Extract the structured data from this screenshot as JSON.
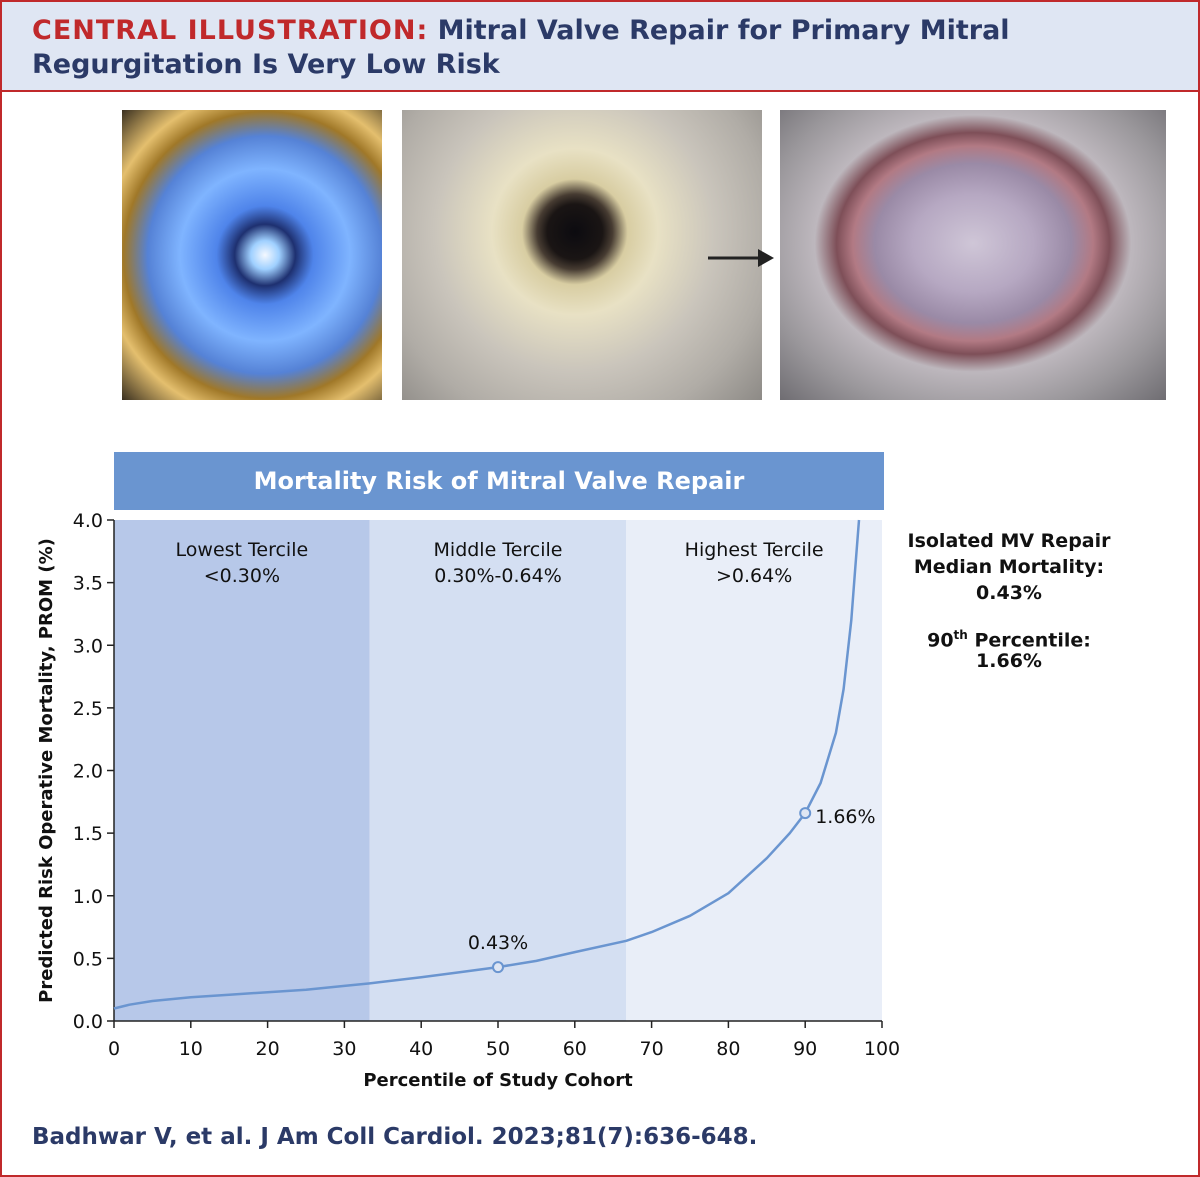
{
  "header": {
    "label": "CENTRAL ILLUSTRATION:",
    "title": "Mitral Valve Repair for Primary Mitral Regurgitation Is Very Low Risk"
  },
  "colors": {
    "accent_red": "#c0292b",
    "navy": "#2b3a67",
    "header_bg": "#dfe6f3",
    "banner_bg": "#6a95d0",
    "line": "#6a95d0",
    "band_lowest": "#b7c8e9",
    "band_middle": "#d4dff2",
    "band_highest": "#e9eef8"
  },
  "sidebar": {
    "median_label": "Isolated MV Repair Median Mortality:",
    "median_value": "0.43%",
    "p90_label_pre": "90",
    "p90_label_sup": "th",
    "p90_label_post": " Percentile:",
    "p90_value": "1.66%"
  },
  "citation": "Badhwar V, et al. J Am Coll Cardiol. 2023;81(7):636-648.",
  "chart_data": {
    "type": "line",
    "title": "Mortality Risk of Mitral Valve Repair",
    "xlabel": "Percentile of Study Cohort",
    "ylabel": "Predicted Risk Operative Mortality, PROM (%)",
    "xlim": [
      0,
      100
    ],
    "ylim": [
      0,
      4.0
    ],
    "x_ticks": [
      0,
      10,
      20,
      30,
      40,
      50,
      60,
      70,
      80,
      90,
      100
    ],
    "y_ticks": [
      0.0,
      0.5,
      1.0,
      1.5,
      2.0,
      2.5,
      3.0,
      3.5,
      4.0
    ],
    "y_tick_labels": [
      "0.0",
      "0.5",
      "1.0",
      "1.5",
      "2.0",
      "2.5",
      "3.0",
      "3.5",
      "4.0"
    ],
    "grid": false,
    "regions": [
      {
        "name": "Lowest Tercile",
        "range_label": "<0.30%",
        "x": [
          0,
          33.3
        ]
      },
      {
        "name": "Middle Tercile",
        "range_label": "0.30%-0.64%",
        "x": [
          33.3,
          66.7
        ]
      },
      {
        "name": "Highest Tercile",
        "range_label": ">0.64%",
        "x": [
          66.7,
          100
        ]
      }
    ],
    "series": [
      {
        "x": [
          0,
          2,
          5,
          10,
          15,
          20,
          25,
          30,
          33.3,
          40,
          45,
          50,
          55,
          60,
          66.7,
          70,
          75,
          80,
          85,
          88,
          90,
          92,
          94,
          95,
          96,
          96.5,
          97
        ],
        "values": [
          0.1,
          0.13,
          0.16,
          0.19,
          0.21,
          0.23,
          0.25,
          0.28,
          0.3,
          0.35,
          0.39,
          0.43,
          0.48,
          0.55,
          0.64,
          0.71,
          0.84,
          1.02,
          1.3,
          1.5,
          1.66,
          1.9,
          2.3,
          2.65,
          3.2,
          3.6,
          4.0
        ]
      }
    ],
    "annotations": [
      {
        "x": 50,
        "y": 0.43,
        "label": "0.43%"
      },
      {
        "x": 90,
        "y": 1.66,
        "label": "1.66%"
      }
    ]
  }
}
